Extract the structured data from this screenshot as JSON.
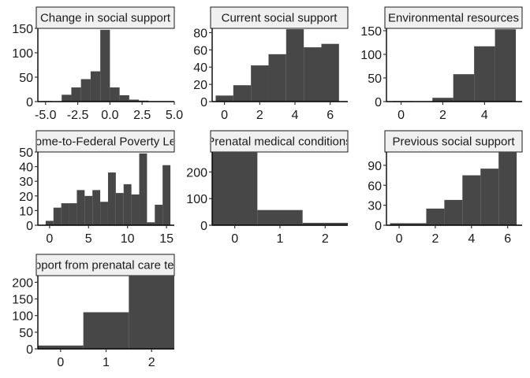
{
  "chart_data": [
    {
      "type": "histogram",
      "title": "Change in social support",
      "xlim": [
        -5.6,
        5.0
      ],
      "ylim": [
        0,
        150
      ],
      "xticks": [
        -5.0,
        -2.5,
        0.0,
        2.5,
        5.0
      ],
      "xtick_labels": [
        "-5.0",
        "-2.5",
        "0.0",
        "2.5",
        "5.0"
      ],
      "yticks": [
        0,
        50,
        100,
        150
      ],
      "ytick_labels": [
        "0",
        "50",
        "100",
        "150"
      ],
      "bins": [
        {
          "x0": -5.25,
          "x1": -4.5,
          "count": 1
        },
        {
          "x0": -3.75,
          "x1": -3.0,
          "count": 14
        },
        {
          "x0": -3.0,
          "x1": -2.25,
          "count": 29
        },
        {
          "x0": -2.25,
          "x1": -1.5,
          "count": 46
        },
        {
          "x0": -1.5,
          "x1": -0.75,
          "count": 62
        },
        {
          "x0": -0.75,
          "x1": 0.0,
          "count": 147
        },
        {
          "x0": 0.0,
          "x1": 0.75,
          "count": 29
        },
        {
          "x0": 0.75,
          "x1": 1.5,
          "count": 13
        },
        {
          "x0": 1.5,
          "x1": 2.25,
          "count": 4
        },
        {
          "x0": 2.25,
          "x1": 3.0,
          "count": 2
        }
      ]
    },
    {
      "type": "histogram",
      "title": "Current social support",
      "xlim": [
        -0.7,
        7.0
      ],
      "ylim": [
        0,
        85
      ],
      "xticks": [
        0,
        2,
        4,
        6
      ],
      "xtick_labels": [
        "0",
        "2",
        "4",
        "6"
      ],
      "yticks": [
        0,
        20,
        40,
        60,
        80
      ],
      "ytick_labels": [
        "0",
        "20",
        "40",
        "60",
        "80"
      ],
      "bins": [
        {
          "x0": -0.5,
          "x1": 0.5,
          "count": 7
        },
        {
          "x0": 0.5,
          "x1": 1.5,
          "count": 19
        },
        {
          "x0": 1.5,
          "x1": 2.5,
          "count": 42
        },
        {
          "x0": 2.5,
          "x1": 3.5,
          "count": 55
        },
        {
          "x0": 3.5,
          "x1": 4.5,
          "count": 84
        },
        {
          "x0": 4.5,
          "x1": 5.5,
          "count": 63
        },
        {
          "x0": 5.5,
          "x1": 6.5,
          "count": 67
        }
      ]
    },
    {
      "type": "histogram",
      "title": "Environmental resources",
      "xlim": [
        -0.7,
        5.8
      ],
      "ylim": [
        0,
        155
      ],
      "xticks": [
        0,
        2,
        4
      ],
      "xtick_labels": [
        "0",
        "2",
        "4"
      ],
      "yticks": [
        0,
        50,
        100,
        150
      ],
      "ytick_labels": [
        "0",
        "50",
        "100",
        "150"
      ],
      "bins": [
        {
          "x0": -0.4,
          "x1": 0.6,
          "count": 1
        },
        {
          "x0": 1.5,
          "x1": 2.5,
          "count": 8
        },
        {
          "x0": 2.5,
          "x1": 3.5,
          "count": 58
        },
        {
          "x0": 3.5,
          "x1": 4.5,
          "count": 117
        },
        {
          "x0": 4.5,
          "x1": 5.5,
          "count": 153
        }
      ]
    },
    {
      "type": "histogram",
      "title": "Income-to-Federal Poverty Level",
      "xlim": [
        -1.5,
        16.0
      ],
      "ylim": [
        0,
        50
      ],
      "xticks": [
        0,
        5,
        10,
        15
      ],
      "xtick_labels": [
        "0",
        "5",
        "10",
        "15"
      ],
      "yticks": [
        0,
        10,
        20,
        30,
        40,
        50
      ],
      "ytick_labels": [
        "0",
        "10",
        "20",
        "30",
        "40",
        "50"
      ],
      "bins": [
        {
          "x0": -0.5,
          "x1": 0.5,
          "count": 3
        },
        {
          "x0": 0.5,
          "x1": 1.5,
          "count": 12
        },
        {
          "x0": 1.5,
          "x1": 2.5,
          "count": 15
        },
        {
          "x0": 2.5,
          "x1": 3.5,
          "count": 15
        },
        {
          "x0": 3.5,
          "x1": 4.5,
          "count": 24
        },
        {
          "x0": 4.5,
          "x1": 5.5,
          "count": 20
        },
        {
          "x0": 5.5,
          "x1": 6.5,
          "count": 24
        },
        {
          "x0": 6.5,
          "x1": 7.5,
          "count": 16
        },
        {
          "x0": 7.5,
          "x1": 8.5,
          "count": 36
        },
        {
          "x0": 8.5,
          "x1": 9.5,
          "count": 22
        },
        {
          "x0": 9.5,
          "x1": 10.5,
          "count": 28
        },
        {
          "x0": 10.5,
          "x1": 11.5,
          "count": 21
        },
        {
          "x0": 11.5,
          "x1": 12.5,
          "count": 49
        },
        {
          "x0": 12.5,
          "x1": 13.5,
          "count": 2
        },
        {
          "x0": 13.5,
          "x1": 14.5,
          "count": 14
        },
        {
          "x0": 14.5,
          "x1": 15.5,
          "count": 41
        }
      ]
    },
    {
      "type": "histogram",
      "title": "Prenatal medical conditions",
      "xlim": [
        -0.5,
        2.5
      ],
      "ylim": [
        0,
        275
      ],
      "xticks": [
        0,
        1,
        2
      ],
      "xtick_labels": [
        "0",
        "1",
        "2"
      ],
      "yticks": [
        0,
        100,
        200
      ],
      "ytick_labels": [
        "0",
        "100",
        "200"
      ],
      "bins": [
        {
          "x0": -0.5,
          "x1": 0.5,
          "count": 275
        },
        {
          "x0": 0.5,
          "x1": 1.5,
          "count": 57
        },
        {
          "x0": 1.5,
          "x1": 2.5,
          "count": 9
        }
      ]
    },
    {
      "type": "histogram",
      "title": "Previous social support",
      "xlim": [
        -0.7,
        6.8
      ],
      "ylim": [
        0,
        110
      ],
      "xticks": [
        0,
        2,
        4,
        6
      ],
      "xtick_labels": [
        "0",
        "2",
        "4",
        "6"
      ],
      "yticks": [
        0,
        30,
        60,
        90
      ],
      "ytick_labels": [
        "0",
        "30",
        "60",
        "90"
      ],
      "bins": [
        {
          "x0": -0.5,
          "x1": 1.5,
          "count": 3
        },
        {
          "x0": 1.5,
          "x1": 2.5,
          "count": 25
        },
        {
          "x0": 2.5,
          "x1": 3.5,
          "count": 38
        },
        {
          "x0": 3.5,
          "x1": 4.5,
          "count": 75
        },
        {
          "x0": 4.5,
          "x1": 5.5,
          "count": 85
        },
        {
          "x0": 5.5,
          "x1": 6.5,
          "count": 110
        }
      ]
    },
    {
      "type": "histogram",
      "title": "Support from prenatal care team",
      "xlim": [
        -0.5,
        2.5
      ],
      "ylim": [
        0,
        220
      ],
      "xticks": [
        0,
        1,
        2
      ],
      "xtick_labels": [
        "0",
        "1",
        "2"
      ],
      "yticks": [
        0,
        50,
        100,
        150,
        200
      ],
      "ytick_labels": [
        "0",
        "50",
        "100",
        "150",
        "200"
      ],
      "bins": [
        {
          "x0": -0.5,
          "x1": 0.5,
          "count": 10
        },
        {
          "x0": 0.5,
          "x1": 1.5,
          "count": 110
        },
        {
          "x0": 1.5,
          "x1": 2.5,
          "count": 220
        }
      ]
    }
  ]
}
